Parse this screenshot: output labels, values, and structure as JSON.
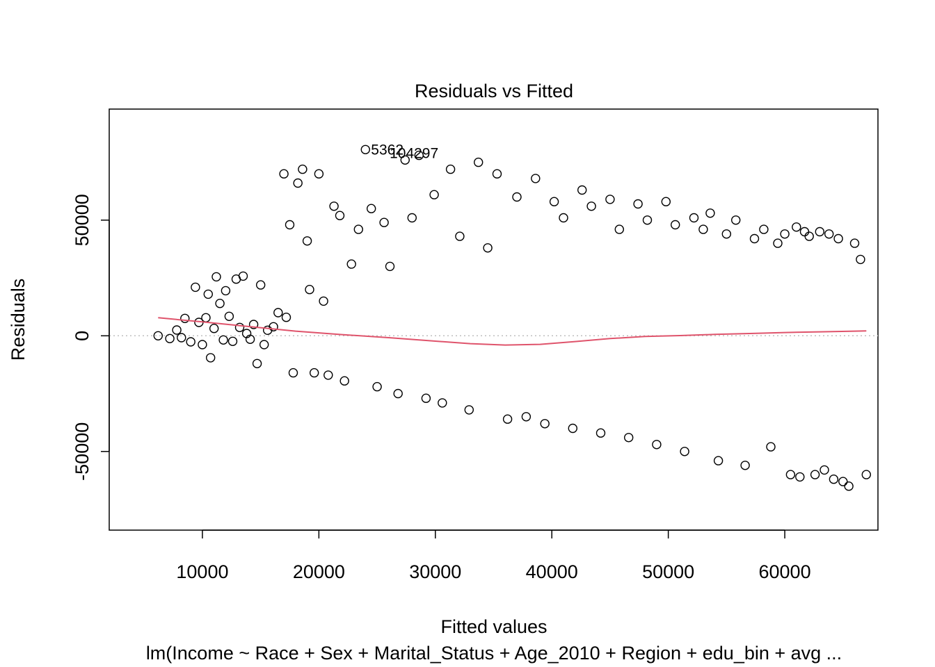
{
  "chart_data": {
    "type": "scatter",
    "title": "Residuals vs Fitted",
    "xlabel": "Fitted values",
    "ylabel": "Residuals",
    "subtitle": "lm(Income ~ Race + Sex + Marital_Status + Age_2010 + Region + edu_bin + avg ...",
    "xlim": [
      2000,
      68000
    ],
    "ylim": [
      -84000,
      98000
    ],
    "x_ticks": [
      10000,
      20000,
      30000,
      40000,
      50000,
      60000
    ],
    "y_ticks": [
      -50000,
      0,
      50000
    ],
    "x_tick_labels": [
      "10000",
      "20000",
      "30000",
      "40000",
      "50000",
      "60000"
    ],
    "y_tick_labels": [
      "-50000",
      "0",
      "50000"
    ],
    "reference_line_y": 0,
    "colors": {
      "points": "#000000",
      "smoother": "#DF536B",
      "reference": "#BEBEBE"
    },
    "series": [
      {
        "x": [
          6200,
          7200,
          7800,
          8200,
          8500,
          9000,
          9400,
          9700,
          10000,
          10300,
          10500,
          10700,
          11000,
          11200,
          11500,
          11800,
          12000,
          12300,
          12600,
          12900,
          13200,
          13500,
          13800,
          14100,
          14400,
          14700,
          15000,
          15300,
          15600,
          16100,
          16500,
          17000,
          17200,
          17500,
          17800,
          18200,
          18600,
          19000,
          19200,
          19600,
          20000,
          20400,
          20800,
          21300,
          21800,
          22200,
          22800,
          23400,
          24000,
          24500,
          25000,
          25600,
          26100,
          26800,
          27400,
          28000,
          28600,
          29200,
          29900,
          30600,
          31300,
          32100,
          32900,
          33700,
          34500,
          35300,
          36200,
          37000,
          37800,
          38600,
          39400,
          40200,
          41000,
          41800,
          42600,
          43400,
          44200,
          45000,
          45800,
          46600,
          47400,
          48200,
          49000,
          49800,
          50600,
          51400,
          52200,
          53000,
          53600,
          54300,
          55000,
          55800,
          56600,
          57400,
          58200,
          58800,
          59400,
          60000,
          60500,
          61000,
          61300,
          61700,
          62100,
          62600,
          63000,
          63400,
          63800,
          64200,
          64600,
          65000,
          65500,
          66000,
          66500,
          67000
        ],
        "y": [
          0,
          -1200,
          2500,
          -800,
          7500,
          -2600,
          21000,
          5800,
          -3800,
          7800,
          18000,
          -9500,
          3200,
          25500,
          14000,
          -1800,
          19500,
          8400,
          -2400,
          24500,
          3600,
          25800,
          1000,
          -1500,
          4900,
          -12000,
          22000,
          -3800,
          2400,
          3900,
          10000,
          70000,
          8000,
          48000,
          -16000,
          66000,
          72000,
          41000,
          20000,
          -16000,
          70000,
          15000,
          -17000,
          56000,
          52000,
          -19500,
          31000,
          46000,
          80500,
          55000,
          -22000,
          49000,
          30000,
          -25000,
          76000,
          51000,
          78000,
          -27000,
          61000,
          -29000,
          72000,
          43000,
          -32000,
          75000,
          38000,
          70000,
          -36000,
          60000,
          -35000,
          68000,
          -38000,
          58000,
          51000,
          -40000,
          63000,
          56000,
          -42000,
          59000,
          46000,
          -44000,
          57000,
          50000,
          -47000,
          58000,
          48000,
          -50000,
          51000,
          46000,
          53000,
          -54000,
          44000,
          50000,
          -56000,
          42000,
          46000,
          -48000,
          40000,
          44000,
          -60000,
          47000,
          -61000,
          45000,
          43000,
          -60000,
          45000,
          -58000,
          44000,
          -62000,
          42000,
          -63000,
          -65000,
          40000,
          33000,
          -60000
        ]
      }
    ],
    "smoother": {
      "x": [
        6200,
        10000,
        14000,
        18000,
        22000,
        26000,
        30000,
        33000,
        36000,
        39000,
        42000,
        45000,
        48000,
        51000,
        54000,
        57000,
        60000,
        63000,
        66000,
        67000
      ],
      "y": [
        7800,
        6000,
        4000,
        2000,
        500,
        -800,
        -2300,
        -3400,
        -4000,
        -3700,
        -2500,
        -1200,
        -300,
        100,
        600,
        1000,
        1400,
        1700,
        2000,
        2100
      ]
    },
    "annotations": [
      {
        "text": "5362",
        "x": 24000,
        "y": 80500
      },
      {
        "text": "104297",
        "x": 25600,
        "y": 79000
      }
    ]
  }
}
